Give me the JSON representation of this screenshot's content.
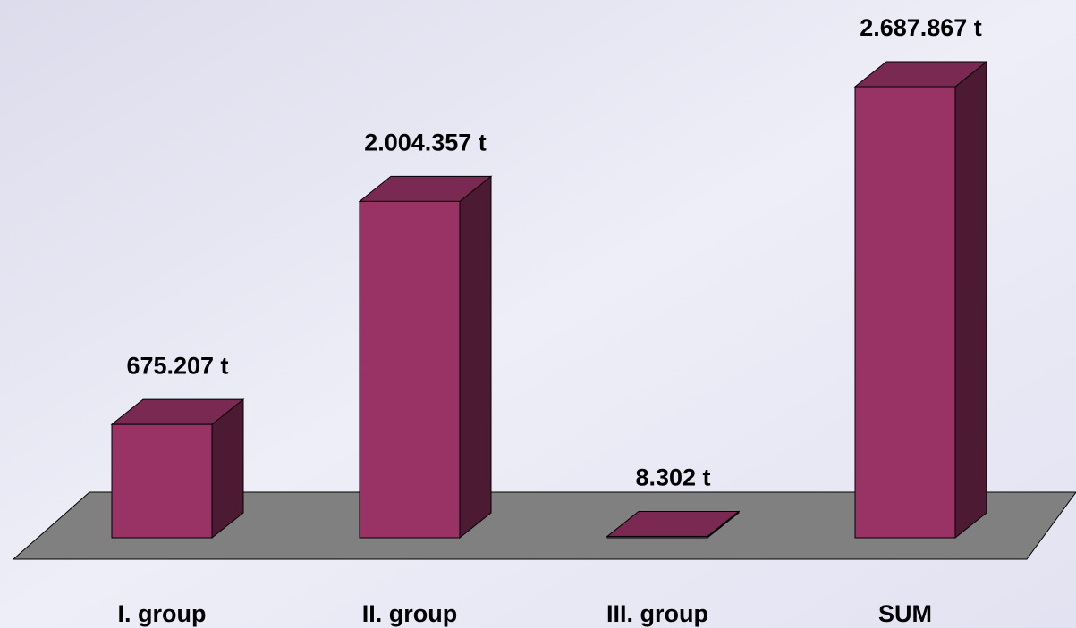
{
  "chart_data": {
    "type": "bar3d",
    "categories": [
      "I. group",
      "II. group",
      "III. group",
      "SUM"
    ],
    "values": [
      675207,
      2004357,
      8302,
      2687867
    ],
    "value_labels": [
      "675.207 t",
      "2.004.357 t",
      "8.302 t",
      "2.687.867 t"
    ],
    "color": "#993366"
  }
}
